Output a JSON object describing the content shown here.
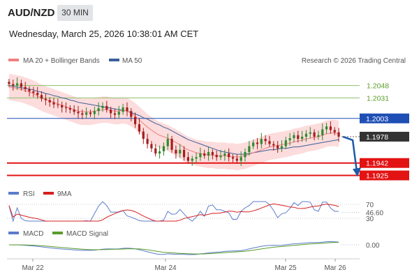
{
  "header": {
    "symbol": "AUD/NZD",
    "timeframe": "30 MIN",
    "datetime": "Wednesday, March 25, 2026 10:38:01 AM CET"
  },
  "legend": {
    "ma20_label": "MA 20 + Bollinger Bands",
    "ma50_label": "MA 50",
    "source": "Research © 2026 Trading Central",
    "rsi_label": "RSI",
    "rsi_ma_label": "9MA",
    "macd_label": "MACD",
    "macd_signal_label": "MACD Signal"
  },
  "colors": {
    "up_candle": "#2e8b2e",
    "down_candle": "#a61c1c",
    "ma20": "#f08080",
    "bollinger_fill": "#fcd6d6",
    "ma50": "#3c5f9a",
    "resistance": "#8cc06a",
    "pivot": "#1f4fb5",
    "support": "#e31313",
    "current_price": "#333333",
    "arrow": "#1f5aa8",
    "rsi": "#5b7ccc",
    "rsi_ma": "#d62020",
    "macd": "#5b7ccc",
    "macd_signal": "#5a9c2a"
  },
  "chart_data": [
    {
      "type": "candlestick",
      "panel": "price",
      "x_ticks": [
        "Mar 22",
        "Mar 24",
        "Mar 25",
        "Mar 26"
      ],
      "y_range": [
        1.1915,
        1.206
      ],
      "levels": [
        {
          "name": "resistance-2",
          "value": 1.2048,
          "label": "1.2048"
        },
        {
          "name": "resistance-1",
          "value": 1.2031,
          "label": "1.2031"
        },
        {
          "name": "pivot",
          "value": 1.2003,
          "label": "1.2003"
        },
        {
          "name": "support-1",
          "value": 1.1942,
          "label": "1.1942"
        },
        {
          "name": "support-2",
          "value": 1.1925,
          "label": "1.1925"
        }
      ],
      "current_price": {
        "value": 1.1978,
        "label": "1.1978"
      },
      "close_series": [
        1.205,
        1.2048,
        1.2051,
        1.2046,
        1.2043,
        1.204,
        1.2038,
        1.2035,
        1.203,
        1.2028,
        1.2025,
        1.2022,
        1.2021,
        1.2018,
        1.2017,
        1.2015,
        1.2012,
        1.201,
        1.2008,
        1.2011,
        1.2009,
        1.2013,
        1.2017,
        1.202,
        1.2015,
        1.201,
        1.2008,
        1.2012,
        1.2018,
        1.2013,
        1.2005,
        1.1995,
        1.1985,
        1.1975,
        1.1968,
        1.1962,
        1.1955,
        1.1958,
        1.1965,
        1.1975,
        1.196,
        1.1955,
        1.196,
        1.195,
        1.1945,
        1.1948,
        1.195,
        1.1955,
        1.1952,
        1.1957,
        1.1953,
        1.195,
        1.1952,
        1.1955,
        1.195,
        1.1948,
        1.1945,
        1.195,
        1.1957,
        1.1965,
        1.197,
        1.1968,
        1.1975,
        1.1972,
        1.1968,
        1.1966,
        1.1962,
        1.1965,
        1.1973,
        1.1976,
        1.198,
        1.1975,
        1.1978,
        1.1982,
        1.1984,
        1.1978,
        1.198,
        1.1988,
        1.1992,
        1.1987,
        1.1984,
        1.1978
      ],
      "ma20_series": [
        1.2046,
        1.2045,
        1.2044,
        1.2043,
        1.2041,
        1.2039,
        1.2037,
        1.2034,
        1.2031,
        1.2029,
        1.2027,
        1.2025,
        1.2023,
        1.2021,
        1.2019,
        1.2017,
        1.2015,
        1.2013,
        1.2012,
        1.2012,
        1.2012,
        1.2013,
        1.2014,
        1.2015,
        1.2015,
        1.2014,
        1.2013,
        1.2013,
        1.2014,
        1.2013,
        1.201,
        1.2006,
        1.2001,
        1.1996,
        1.1991,
        1.1987,
        1.1983,
        1.198,
        1.1978,
        1.1976,
        1.1973,
        1.197,
        1.1967,
        1.1963,
        1.196,
        1.1958,
        1.1956,
        1.1955,
        1.1954,
        1.1953,
        1.1953,
        1.1952,
        1.1952,
        1.1952,
        1.1951,
        1.1951,
        1.195,
        1.1951,
        1.1952,
        1.1954,
        1.1956,
        1.1958,
        1.196,
        1.1962,
        1.1964,
        1.1965,
        1.1966,
        1.1967,
        1.1968,
        1.1969,
        1.1971,
        1.1972,
        1.1973,
        1.1975,
        1.1976,
        1.1977,
        1.1978,
        1.198,
        1.1982,
        1.1983,
        1.1983,
        1.1982
      ],
      "ma50_series": [
        1.2048,
        1.2047,
        1.2046,
        1.2045,
        1.2044,
        1.2043,
        1.2042,
        1.204,
        1.2039,
        1.2037,
        1.2036,
        1.2034,
        1.2033,
        1.2031,
        1.203,
        1.2028,
        1.2027,
        1.2025,
        1.2024,
        1.2023,
        1.2022,
        1.2021,
        1.202,
        1.2019,
        1.2018,
        1.2017,
        1.2016,
        1.2015,
        1.2014,
        1.2013,
        1.2011,
        1.2009,
        1.2007,
        1.2004,
        1.2002,
        1.1999,
        1.1996,
        1.1994,
        1.1991,
        1.1989,
        1.1986,
        1.1983,
        1.198,
        1.1977,
        1.1974,
        1.1972,
        1.197,
        1.1968,
        1.1966,
        1.1964,
        1.1962,
        1.196,
        1.1958,
        1.1957,
        1.1956,
        1.1955,
        1.1954,
        1.1954,
        1.1954,
        1.1955,
        1.1956,
        1.1957,
        1.1958,
        1.1959,
        1.196,
        1.196,
        1.1961,
        1.1962,
        1.1962,
        1.1963,
        1.1964,
        1.1964,
        1.1965,
        1.1966,
        1.1967,
        1.1968,
        1.1969,
        1.197,
        1.1971,
        1.1972,
        1.1973,
        1.1974
      ],
      "bollinger_width": 0.0018,
      "forecast_arrow": {
        "from": 1.1978,
        "to": 1.193
      }
    },
    {
      "type": "line",
      "panel": "rsi",
      "name": "RSI",
      "levels": [
        70,
        30
      ],
      "value_label": "46.60",
      "level_labels": [
        "70",
        "30"
      ],
      "y_range": [
        20,
        80
      ]
    },
    {
      "type": "line",
      "panel": "macd",
      "name": "MACD",
      "value_label": "0.00"
    }
  ]
}
